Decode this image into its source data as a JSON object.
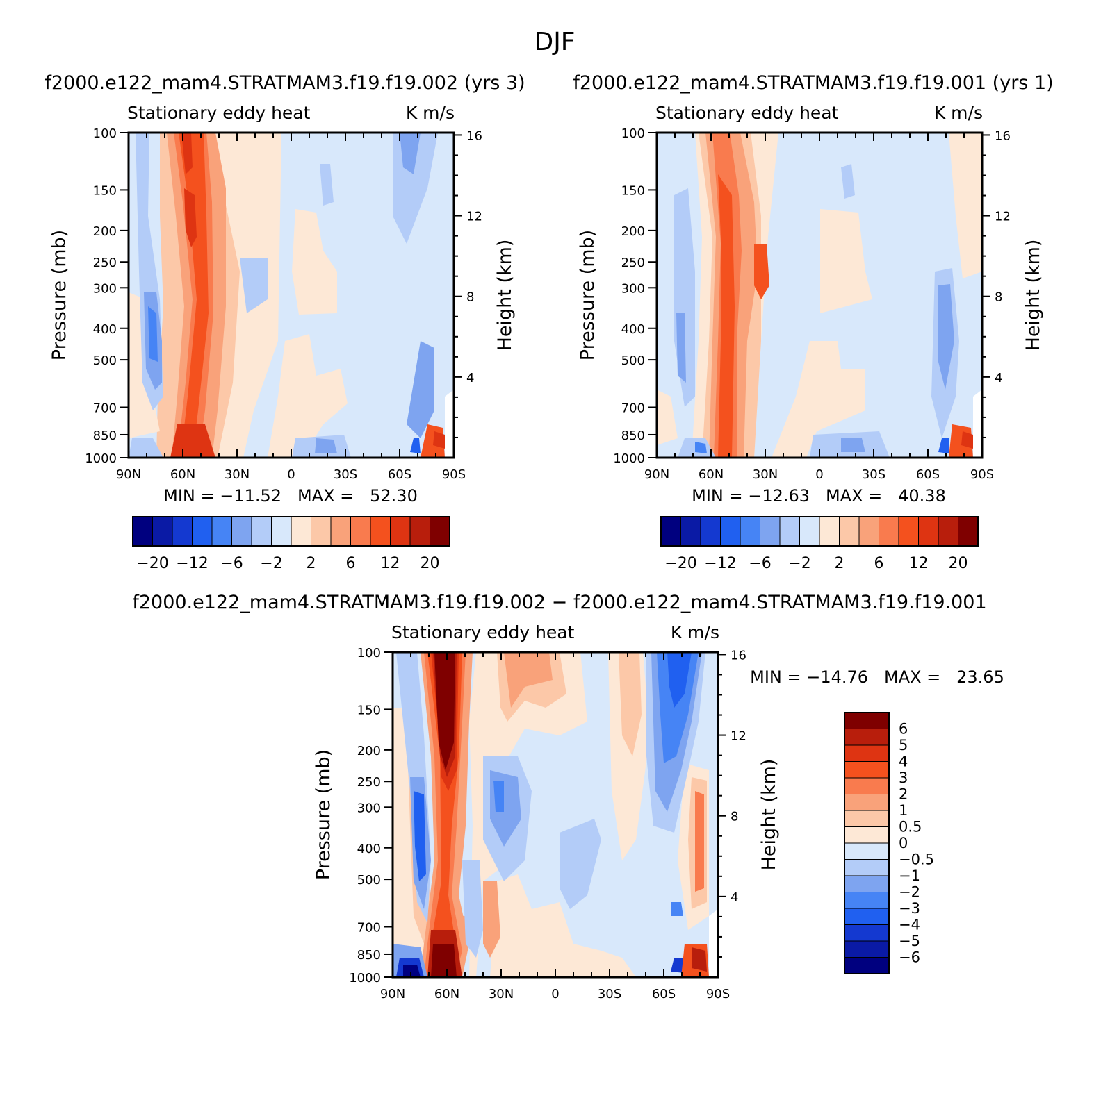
{
  "figure": {
    "title": "DJF"
  },
  "colors": {
    "scale": [
      "#00007f",
      "#0a1aa5",
      "#1439d0",
      "#2060f0",
      "#4684f5",
      "#7ea4f0",
      "#b3ccf8",
      "#d8e8fb",
      "#fde8d6",
      "#fcc8a8",
      "#f9a27a",
      "#f97b4e",
      "#f4511e",
      "#de3412",
      "#b81e0c",
      "#7f0000"
    ],
    "plot_border": "#000000"
  },
  "panels": {
    "p1": {
      "title": "f2000.e122_mam4.STRATMAM3.f19.f19.002 (yrs 3)",
      "left_label": "Stationary eddy heat",
      "right_label": "K m/s",
      "ylabel": "Pressure (mb)",
      "ylabel_right": "Height (km)",
      "minmax": "MIN = −11.52   MAX =   52.30"
    },
    "p2": {
      "title": "f2000.e122_mam4.STRATMAM3.f19.f19.001 (yrs 1)",
      "left_label": "Stationary eddy heat",
      "right_label": "K m/s",
      "ylabel": "Pressure (mb)",
      "ylabel_right": "Height (km)",
      "minmax": "MIN = −12.63   MAX =   40.38"
    },
    "p3": {
      "title": "f2000.e122_mam4.STRATMAM3.f19.f19.002 − f2000.e122_mam4.STRATMAM3.f19.f19.001",
      "left_label": "Stationary eddy heat",
      "right_label": "K m/s",
      "ylabel": "Pressure (mb)",
      "ylabel_right": "Height (km)",
      "minmax": "MIN = −14.76   MAX =   23.65"
    }
  },
  "colorbar_top": {
    "labels": [
      "−20",
      "−12",
      "−6",
      "−2",
      "2",
      "6",
      "12",
      "20"
    ]
  },
  "colorbar_diff": {
    "labels": [
      "6",
      "5",
      "4",
      "3",
      "2",
      "1",
      "0.5",
      "0",
      "−0.5",
      "−1",
      "−2",
      "−3",
      "−4",
      "−5",
      "−6"
    ]
  },
  "chart_data": [
    {
      "type": "heatmap",
      "title": "f2000.e122_mam4.STRATMAM3.f19.f19.002 (yrs 3)",
      "variable": "Stationary eddy heat",
      "units": "K m/s",
      "xlabel": "",
      "ylabel": "Pressure (mb)",
      "ylabel_right": "Height (km)",
      "x_ticks": [
        "90N",
        "60N",
        "30N",
        "0",
        "30S",
        "60S",
        "90S"
      ],
      "y_ticks": [
        100,
        150,
        200,
        250,
        300,
        400,
        500,
        700,
        850,
        1000
      ],
      "height_ticks": [
        4,
        8,
        12,
        16
      ],
      "min": -11.52,
      "max": 52.3,
      "contour_levels": [
        -20,
        -16,
        -12,
        -9,
        -6,
        -4,
        -2,
        0,
        2,
        4,
        6,
        9,
        12,
        16,
        20
      ],
      "ylim": [
        1000,
        100
      ]
    },
    {
      "type": "heatmap",
      "title": "f2000.e122_mam4.STRATMAM3.f19.f19.001 (yrs 1)",
      "variable": "Stationary eddy heat",
      "units": "K m/s",
      "xlabel": "",
      "ylabel": "Pressure (mb)",
      "ylabel_right": "Height (km)",
      "x_ticks": [
        "90N",
        "60N",
        "30N",
        "0",
        "30S",
        "60S",
        "90S"
      ],
      "y_ticks": [
        100,
        150,
        200,
        250,
        300,
        400,
        500,
        700,
        850,
        1000
      ],
      "height_ticks": [
        4,
        8,
        12,
        16
      ],
      "min": -12.63,
      "max": 40.38,
      "contour_levels": [
        -20,
        -16,
        -12,
        -9,
        -6,
        -4,
        -2,
        0,
        2,
        4,
        6,
        9,
        12,
        16,
        20
      ],
      "ylim": [
        1000,
        100
      ]
    },
    {
      "type": "heatmap",
      "title": "f2000.e122_mam4.STRATMAM3.f19.f19.002 − f2000.e122_mam4.STRATMAM3.f19.f19.001",
      "variable": "Stationary eddy heat",
      "units": "K m/s",
      "xlabel": "",
      "ylabel": "Pressure (mb)",
      "ylabel_right": "Height (km)",
      "x_ticks": [
        "90N",
        "60N",
        "30N",
        "0",
        "30S",
        "60S",
        "90S"
      ],
      "y_ticks": [
        100,
        150,
        200,
        250,
        300,
        400,
        500,
        700,
        850,
        1000
      ],
      "height_ticks": [
        4,
        8,
        12,
        16
      ],
      "min": -14.76,
      "max": 23.65,
      "contour_levels": [
        -6,
        -5,
        -4,
        -3,
        -2,
        -1,
        -0.5,
        0,
        0.5,
        1,
        2,
        3,
        4,
        5,
        6
      ],
      "ylim": [
        1000,
        100
      ]
    }
  ]
}
